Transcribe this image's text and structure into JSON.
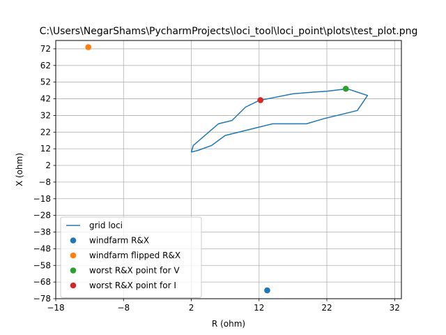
{
  "chart_data": {
    "type": "scatter",
    "title": "C:\\Users\\NegarShams\\PycharmProjects\\loci_tool\\loci_point\\plots\\test_plot.png",
    "xlabel": "R (ohm)",
    "ylabel": "X (ohm)",
    "xlim": [
      -18,
      33
    ],
    "ylim": [
      -78,
      77
    ],
    "xticks": [
      -18,
      -8,
      2,
      12,
      22,
      32
    ],
    "yticks": [
      72,
      62,
      52,
      42,
      32,
      22,
      12,
      2,
      -8,
      -18,
      -28,
      -38,
      -48,
      -58,
      -68,
      -78
    ],
    "grid": true,
    "legend_position": "lower-left",
    "colors": {
      "line": "#1f77b4",
      "blue": "#1f77b4",
      "orange": "#ff7f0e",
      "green": "#2ca02c",
      "red": "#d62728",
      "grid": "#b0b0b0"
    },
    "series": [
      {
        "name": "grid loci",
        "kind": "line",
        "color": "#1f77b4",
        "points": [
          [
            2.0,
            10.0
          ],
          [
            2.3,
            14.0
          ],
          [
            4.0,
            20.0
          ],
          [
            6.0,
            27.0
          ],
          [
            8.0,
            29.0
          ],
          [
            10.0,
            37.0
          ],
          [
            12.0,
            41.0
          ],
          [
            14.5,
            43.0
          ],
          [
            17.0,
            45.0
          ],
          [
            20.0,
            46.0
          ],
          [
            22.0,
            46.5
          ],
          [
            25.0,
            48.0
          ],
          [
            28.0,
            44.0
          ],
          [
            26.5,
            35.0
          ],
          [
            21.5,
            30.0
          ],
          [
            19.0,
            27.0
          ],
          [
            14.0,
            27.0
          ],
          [
            12.0,
            25.0
          ],
          [
            7.0,
            20.0
          ],
          [
            5.0,
            14.0
          ],
          [
            3.0,
            11.0
          ],
          [
            2.0,
            10.0
          ]
        ]
      },
      {
        "name": "windfarm R&X",
        "kind": "scatter",
        "color": "#1f77b4",
        "points": [
          [
            13.2,
            -73.0
          ]
        ]
      },
      {
        "name": "windfarm flipped R&X",
        "kind": "scatter",
        "color": "#ff7f0e",
        "points": [
          [
            -13.2,
            73.0
          ]
        ]
      },
      {
        "name": "worst R&X point for V",
        "kind": "scatter",
        "color": "#2ca02c",
        "points": [
          [
            24.8,
            48.0
          ]
        ]
      },
      {
        "name": "worst R&X point for I",
        "kind": "scatter",
        "color": "#d62728",
        "points": [
          [
            12.2,
            41.2
          ]
        ]
      }
    ]
  }
}
